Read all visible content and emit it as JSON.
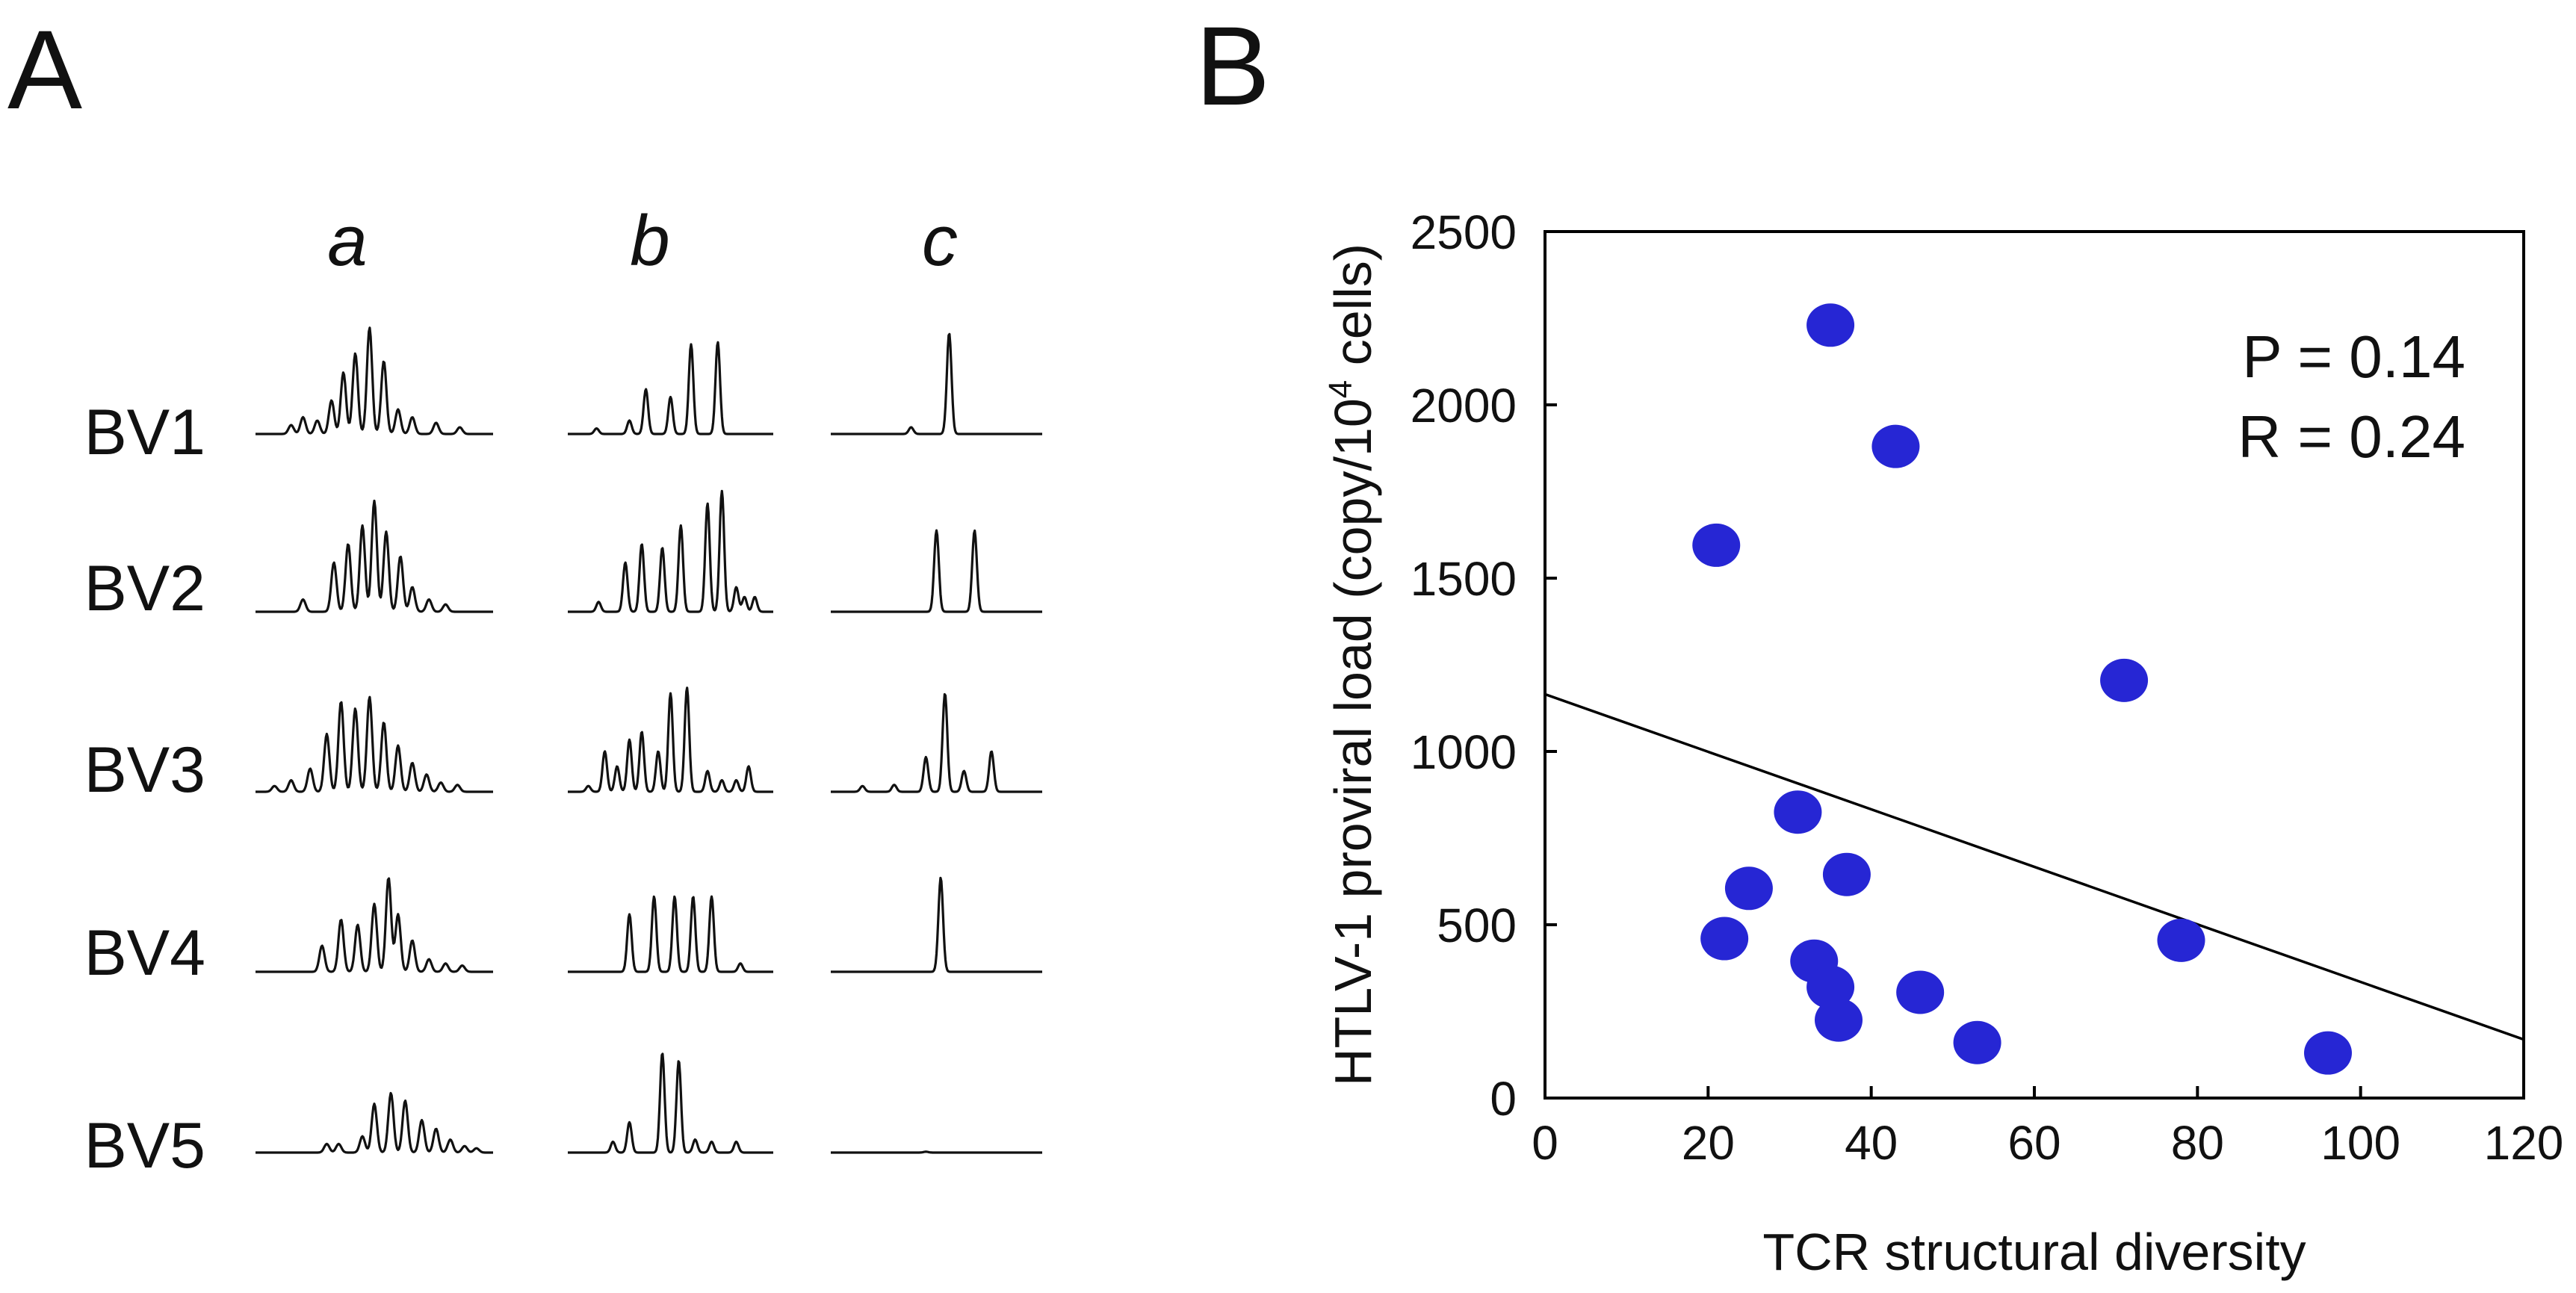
{
  "panel_a": {
    "label": "A",
    "columns": [
      "a",
      "b",
      "c"
    ],
    "rows": [
      "BV1",
      "BV2",
      "BV3",
      "BV4",
      "BV5"
    ],
    "traces": [
      [
        {
          "peaks": [
            [
              0.15,
              0.08
            ],
            [
              0.2,
              0.15
            ],
            [
              0.26,
              0.12
            ],
            [
              0.32,
              0.3
            ],
            [
              0.37,
              0.55
            ],
            [
              0.42,
              0.72
            ],
            [
              0.48,
              0.95
            ],
            [
              0.54,
              0.65
            ],
            [
              0.6,
              0.22
            ],
            [
              0.66,
              0.15
            ],
            [
              0.76,
              0.1
            ],
            [
              0.86,
              0.06
            ]
          ]
        },
        {
          "peaks": [
            [
              0.14,
              0.05
            ],
            [
              0.3,
              0.12
            ],
            [
              0.38,
              0.4
            ],
            [
              0.5,
              0.33
            ],
            [
              0.6,
              0.8
            ],
            [
              0.73,
              0.82
            ]
          ]
        },
        {
          "peaks": [
            [
              0.38,
              0.06
            ],
            [
              0.56,
              0.9
            ]
          ]
        }
      ],
      [
        {
          "peaks": [
            [
              0.2,
              0.1
            ],
            [
              0.33,
              0.4
            ],
            [
              0.39,
              0.55
            ],
            [
              0.45,
              0.7
            ],
            [
              0.5,
              0.9
            ],
            [
              0.55,
              0.65
            ],
            [
              0.61,
              0.45
            ],
            [
              0.66,
              0.2
            ],
            [
              0.73,
              0.1
            ],
            [
              0.8,
              0.06
            ]
          ]
        },
        {
          "peaks": [
            [
              0.15,
              0.08
            ],
            [
              0.28,
              0.4
            ],
            [
              0.36,
              0.55
            ],
            [
              0.46,
              0.52
            ],
            [
              0.55,
              0.7
            ],
            [
              0.68,
              0.88
            ],
            [
              0.75,
              0.98
            ],
            [
              0.82,
              0.2
            ],
            [
              0.86,
              0.12
            ],
            [
              0.91,
              0.12
            ]
          ]
        },
        {
          "peaks": [
            [
              0.5,
              0.66
            ],
            [
              0.68,
              0.66
            ]
          ]
        }
      ],
      [
        {
          "peaks": [
            [
              0.08,
              0.05
            ],
            [
              0.15,
              0.1
            ],
            [
              0.23,
              0.2
            ],
            [
              0.3,
              0.5
            ],
            [
              0.36,
              0.78
            ],
            [
              0.42,
              0.72
            ],
            [
              0.48,
              0.82
            ],
            [
              0.54,
              0.6
            ],
            [
              0.6,
              0.4
            ],
            [
              0.66,
              0.25
            ],
            [
              0.72,
              0.15
            ],
            [
              0.78,
              0.08
            ],
            [
              0.85,
              0.06
            ]
          ]
        },
        {
          "peaks": [
            [
              0.1,
              0.05
            ],
            [
              0.18,
              0.35
            ],
            [
              0.24,
              0.22
            ],
            [
              0.3,
              0.45
            ],
            [
              0.36,
              0.52
            ],
            [
              0.44,
              0.35
            ],
            [
              0.5,
              0.85
            ],
            [
              0.58,
              0.9
            ],
            [
              0.68,
              0.18
            ],
            [
              0.75,
              0.1
            ],
            [
              0.82,
              0.1
            ],
            [
              0.88,
              0.22
            ]
          ]
        },
        {
          "peaks": [
            [
              0.15,
              0.05
            ],
            [
              0.3,
              0.06
            ],
            [
              0.45,
              0.3
            ],
            [
              0.54,
              0.85
            ],
            [
              0.63,
              0.18
            ],
            [
              0.76,
              0.35
            ]
          ]
        }
      ],
      [
        {
          "peaks": [
            [
              0.28,
              0.25
            ],
            [
              0.36,
              0.5
            ],
            [
              0.43,
              0.45
            ],
            [
              0.5,
              0.65
            ],
            [
              0.56,
              0.9
            ],
            [
              0.6,
              0.55
            ],
            [
              0.66,
              0.3
            ],
            [
              0.73,
              0.12
            ],
            [
              0.8,
              0.08
            ],
            [
              0.87,
              0.06
            ]
          ]
        },
        {
          "peaks": [
            [
              0.3,
              0.55
            ],
            [
              0.42,
              0.72
            ],
            [
              0.52,
              0.72
            ],
            [
              0.61,
              0.72
            ],
            [
              0.7,
              0.72
            ],
            [
              0.84,
              0.08
            ]
          ]
        },
        {
          "peaks": [
            [
              0.52,
              0.9
            ]
          ]
        }
      ],
      [
        {
          "peaks": [
            [
              0.3,
              0.08
            ],
            [
              0.35,
              0.08
            ],
            [
              0.45,
              0.15
            ],
            [
              0.5,
              0.45
            ],
            [
              0.57,
              0.55
            ],
            [
              0.63,
              0.48
            ],
            [
              0.7,
              0.3
            ],
            [
              0.76,
              0.22
            ],
            [
              0.82,
              0.12
            ],
            [
              0.88,
              0.06
            ],
            [
              0.93,
              0.04
            ]
          ]
        },
        {
          "peaks": [
            [
              0.22,
              0.1
            ],
            [
              0.3,
              0.28
            ],
            [
              0.46,
              0.92
            ],
            [
              0.54,
              0.85
            ],
            [
              0.62,
              0.12
            ],
            [
              0.7,
              0.1
            ],
            [
              0.82,
              0.1
            ]
          ]
        },
        {
          "peaks": [
            [
              0.45,
              0.008
            ]
          ]
        }
      ]
    ]
  },
  "panel_b": {
    "label": "B",
    "stats": {
      "p_text": "P = 0.14",
      "r_text": "R = 0.24"
    }
  },
  "chart_data": {
    "type": "scatter",
    "title": "",
    "xlabel": "TCR structural diversity",
    "ylabel_main": "HTLV-1 proviral load (copy/10",
    "ylabel_sup": "4",
    "ylabel_tail": " cells)",
    "xlim": [
      0,
      120
    ],
    "ylim": [
      0,
      2500
    ],
    "x_ticks": [
      0,
      20,
      40,
      60,
      80,
      100,
      120
    ],
    "y_ticks": [
      0,
      500,
      1000,
      1500,
      2000,
      2500
    ],
    "points": [
      {
        "x": 35,
        "y": 2230
      },
      {
        "x": 43,
        "y": 1880
      },
      {
        "x": 21,
        "y": 1595
      },
      {
        "x": 71,
        "y": 1205
      },
      {
        "x": 31,
        "y": 825
      },
      {
        "x": 37,
        "y": 645
      },
      {
        "x": 25,
        "y": 605
      },
      {
        "x": 22,
        "y": 460
      },
      {
        "x": 78,
        "y": 455
      },
      {
        "x": 33,
        "y": 395
      },
      {
        "x": 35,
        "y": 320
      },
      {
        "x": 46,
        "y": 305
      },
      {
        "x": 36,
        "y": 225
      },
      {
        "x": 53,
        "y": 160
      },
      {
        "x": 96,
        "y": 130
      }
    ],
    "regression": {
      "intercept": 1165,
      "slope": -8.3
    },
    "point_color": "#2626d4"
  }
}
